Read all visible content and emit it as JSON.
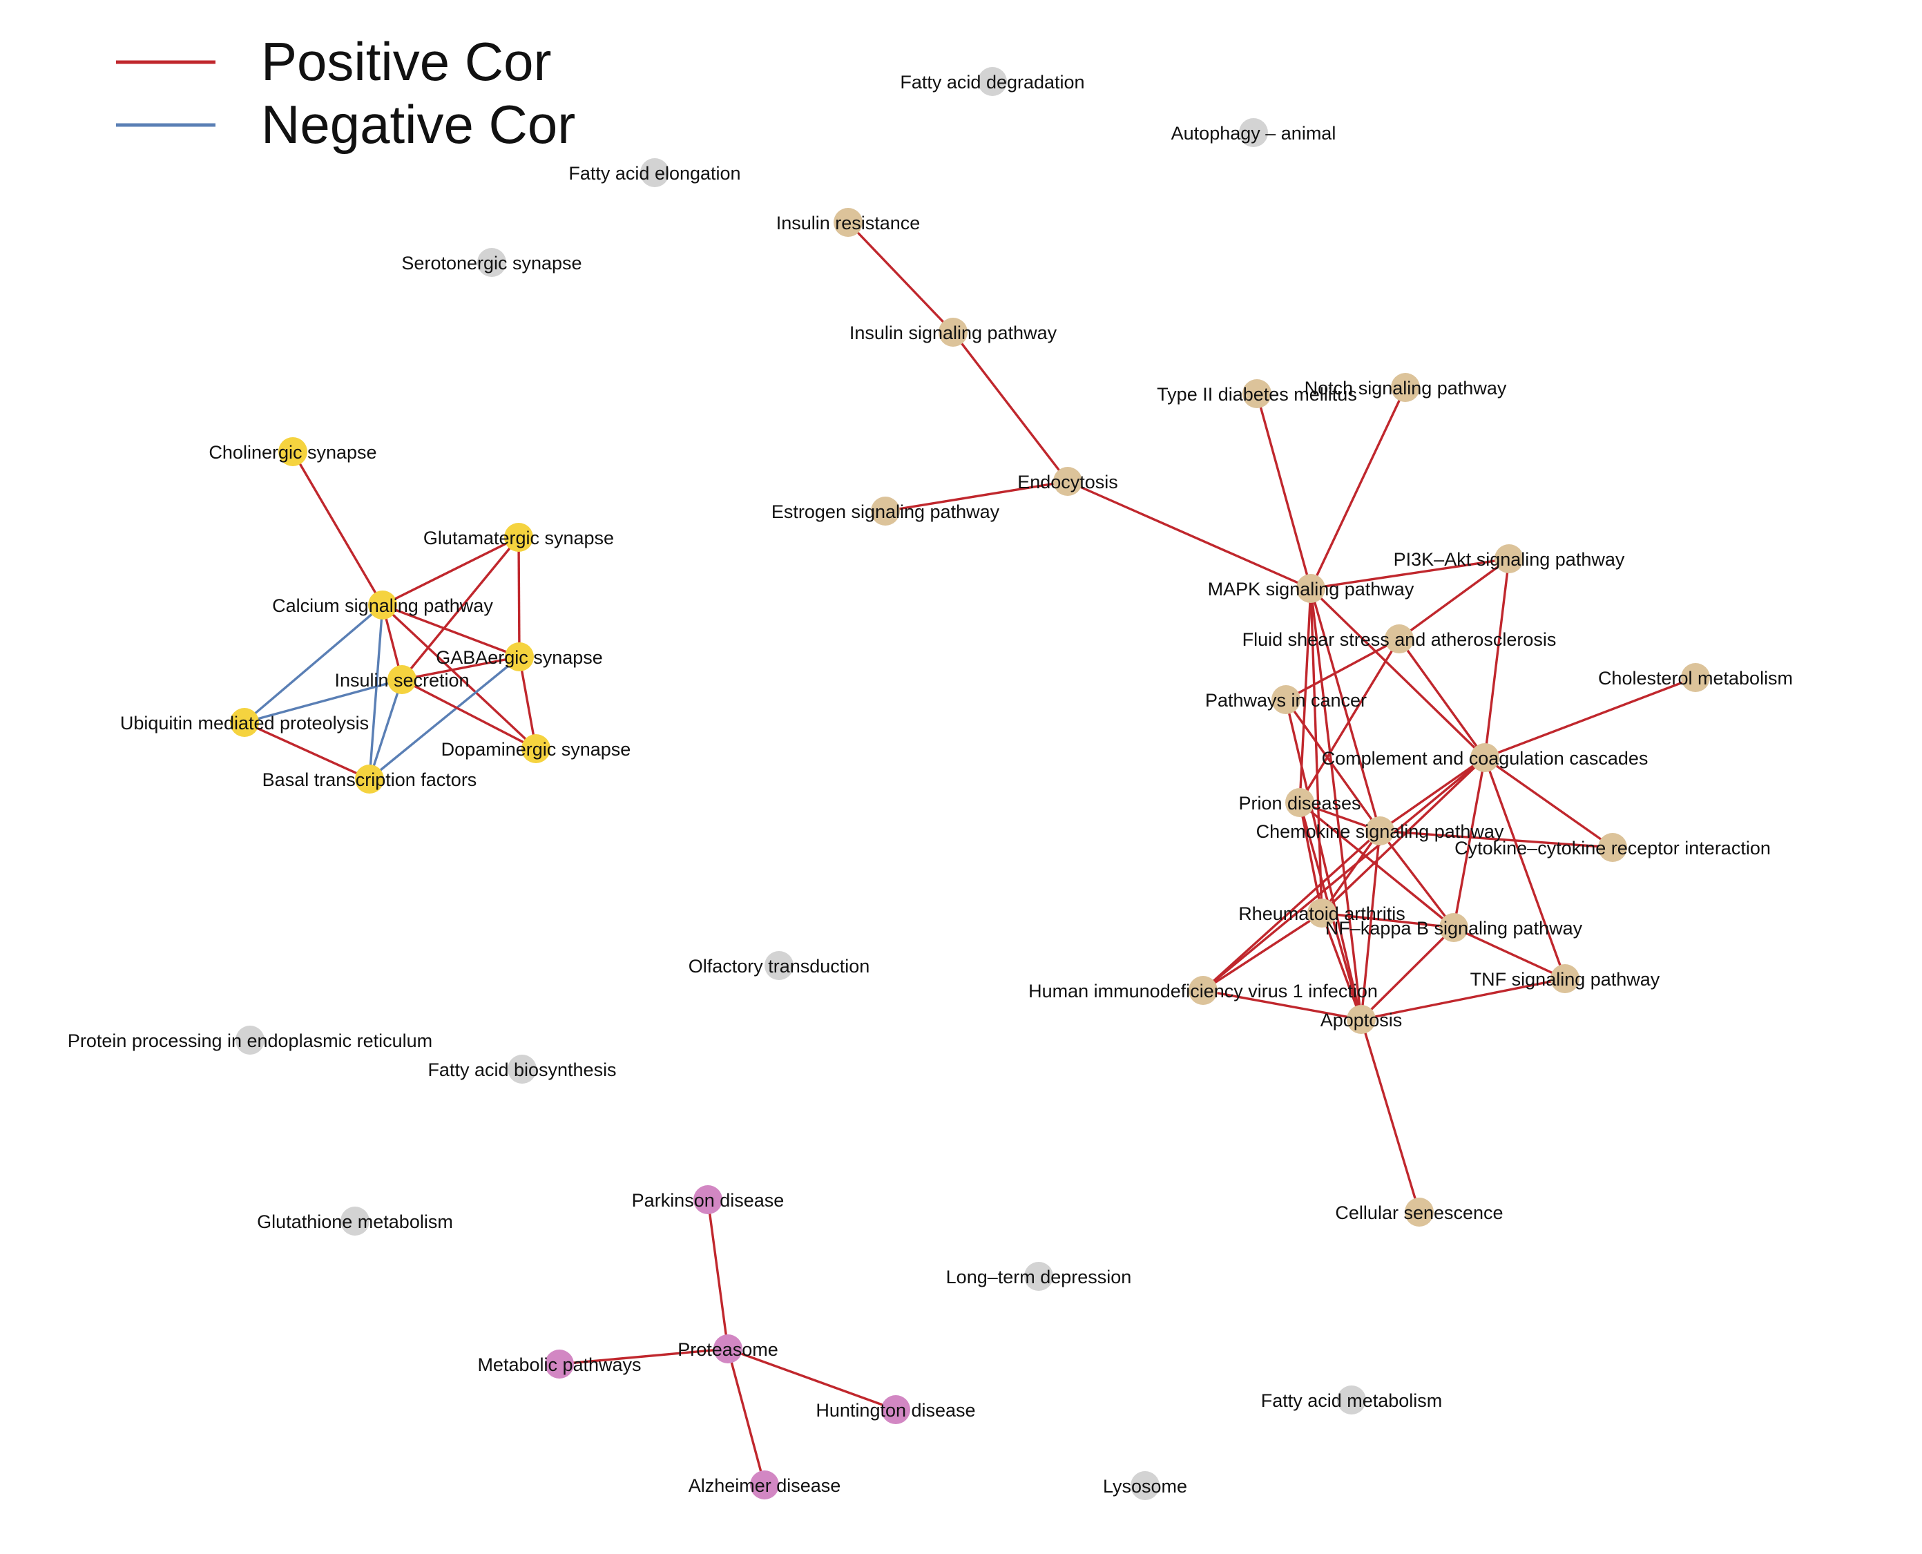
{
  "legend": {
    "items": [
      {
        "label": "Positive Cor",
        "color": "#c0272d"
      },
      {
        "label": "Negative Cor",
        "color": "#5a7fb5"
      }
    ]
  },
  "colors": {
    "positive": "#c0272d",
    "negative": "#5a7fb5",
    "groups": {
      "neuro": "#f5d33f",
      "signaling": "#dcc39a",
      "disease": "#d287c3",
      "isolated": "#d3d3d3"
    }
  },
  "nodes": [
    {
      "id": "fatty-acid-degradation",
      "label": "Fatty acid degradation",
      "group": "isolated"
    },
    {
      "id": "autophagy-animal",
      "label": "Autophagy – animal",
      "group": "isolated"
    },
    {
      "id": "fatty-acid-elongation",
      "label": "Fatty acid elongation",
      "group": "isolated"
    },
    {
      "id": "insulin-resistance",
      "label": "Insulin resistance",
      "group": "signaling"
    },
    {
      "id": "serotonergic-synapse",
      "label": "Serotonergic synapse",
      "group": "isolated"
    },
    {
      "id": "insulin-signaling-pathway",
      "label": "Insulin signaling pathway",
      "group": "signaling"
    },
    {
      "id": "type-ii-diabetes",
      "label": "Type II diabetes mellitus",
      "group": "signaling"
    },
    {
      "id": "notch-signaling",
      "label": "Notch signaling pathway",
      "group": "signaling"
    },
    {
      "id": "cholinergic-synapse",
      "label": "Cholinergic synapse",
      "group": "neuro"
    },
    {
      "id": "endocytosis",
      "label": "Endocytosis",
      "group": "signaling"
    },
    {
      "id": "estrogen-signaling",
      "label": "Estrogen signaling pathway",
      "group": "signaling"
    },
    {
      "id": "glutamatergic-synapse",
      "label": "Glutamatergic synapse",
      "group": "neuro"
    },
    {
      "id": "pi3k-akt",
      "label": "PI3K–Akt signaling pathway",
      "group": "signaling"
    },
    {
      "id": "mapk",
      "label": "MAPK signaling pathway",
      "group": "signaling"
    },
    {
      "id": "calcium-signaling",
      "label": "Calcium signaling pathway",
      "group": "neuro"
    },
    {
      "id": "fluid-shear",
      "label": "Fluid shear stress and atherosclerosis",
      "group": "signaling"
    },
    {
      "id": "gabaergic-synapse",
      "label": "GABAergic synapse",
      "group": "neuro"
    },
    {
      "id": "insulin-secretion",
      "label": "Insulin secretion",
      "group": "neuro"
    },
    {
      "id": "cholesterol-metabolism",
      "label": "Cholesterol metabolism",
      "group": "signaling"
    },
    {
      "id": "pathways-in-cancer",
      "label": "Pathways in cancer",
      "group": "signaling"
    },
    {
      "id": "ubiquitin",
      "label": "Ubiquitin mediated proteolysis",
      "group": "neuro"
    },
    {
      "id": "dopaminergic-synapse",
      "label": "Dopaminergic synapse",
      "group": "neuro"
    },
    {
      "id": "complement",
      "label": "Complement and coagulation cascades",
      "group": "signaling"
    },
    {
      "id": "basal-transcription",
      "label": "Basal transcription factors",
      "group": "neuro"
    },
    {
      "id": "prion-diseases",
      "label": "Prion diseases",
      "group": "signaling"
    },
    {
      "id": "chemokine",
      "label": "Chemokine signaling pathway",
      "group": "signaling"
    },
    {
      "id": "cytokine",
      "label": "Cytokine–cytokine receptor interaction",
      "group": "signaling"
    },
    {
      "id": "rheumatoid-arthritis",
      "label": "Rheumatoid arthritis",
      "group": "signaling"
    },
    {
      "id": "nf-kappa-b",
      "label": "NF–kappa B signaling pathway",
      "group": "signaling"
    },
    {
      "id": "olfactory-transduction",
      "label": "Olfactory transduction",
      "group": "isolated"
    },
    {
      "id": "tnf-signaling",
      "label": "TNF signaling pathway",
      "group": "signaling"
    },
    {
      "id": "hiv-infection",
      "label": "Human immunodeficiency virus 1 infection",
      "group": "signaling"
    },
    {
      "id": "apoptosis",
      "label": "Apoptosis",
      "group": "signaling"
    },
    {
      "id": "protein-processing-er",
      "label": "Protein processing in endoplasmic reticulum",
      "group": "isolated"
    },
    {
      "id": "fatty-acid-biosynthesis",
      "label": "Fatty acid biosynthesis",
      "group": "isolated"
    },
    {
      "id": "parkinson-disease",
      "label": "Parkinson disease",
      "group": "disease"
    },
    {
      "id": "cellular-senescence",
      "label": "Cellular senescence",
      "group": "signaling"
    },
    {
      "id": "glutathione-metabolism",
      "label": "Glutathione metabolism",
      "group": "isolated"
    },
    {
      "id": "long-term-depression",
      "label": "Long–term depression",
      "group": "isolated"
    },
    {
      "id": "proteasome",
      "label": "Proteasome",
      "group": "disease"
    },
    {
      "id": "metabolic-pathways",
      "label": "Metabolic pathways",
      "group": "disease"
    },
    {
      "id": "huntington-disease",
      "label": "Huntington disease",
      "group": "disease"
    },
    {
      "id": "fatty-acid-metabolism",
      "label": "Fatty acid metabolism",
      "group": "isolated"
    },
    {
      "id": "alzheimer-disease",
      "label": "Alzheimer disease",
      "group": "disease"
    },
    {
      "id": "lysosome",
      "label": "Lysosome",
      "group": "isolated"
    }
  ],
  "edges": [
    {
      "source": "insulin-resistance",
      "target": "insulin-signaling-pathway",
      "sign": "positive"
    },
    {
      "source": "insulin-signaling-pathway",
      "target": "endocytosis",
      "sign": "positive"
    },
    {
      "source": "estrogen-signaling",
      "target": "endocytosis",
      "sign": "positive"
    },
    {
      "source": "endocytosis",
      "target": "mapk",
      "sign": "positive"
    },
    {
      "source": "type-ii-diabetes",
      "target": "mapk",
      "sign": "positive"
    },
    {
      "source": "notch-signaling",
      "target": "mapk",
      "sign": "positive"
    },
    {
      "source": "mapk",
      "target": "pi3k-akt",
      "sign": "positive"
    },
    {
      "source": "mapk",
      "target": "complement",
      "sign": "positive"
    },
    {
      "source": "mapk",
      "target": "prion-diseases",
      "sign": "positive"
    },
    {
      "source": "mapk",
      "target": "chemokine",
      "sign": "positive"
    },
    {
      "source": "mapk",
      "target": "rheumatoid-arthritis",
      "sign": "positive"
    },
    {
      "source": "mapk",
      "target": "apoptosis",
      "sign": "positive"
    },
    {
      "source": "pi3k-akt",
      "target": "fluid-shear",
      "sign": "positive"
    },
    {
      "source": "pi3k-akt",
      "target": "complement",
      "sign": "positive"
    },
    {
      "source": "fluid-shear",
      "target": "pathways-in-cancer",
      "sign": "positive"
    },
    {
      "source": "fluid-shear",
      "target": "complement",
      "sign": "positive"
    },
    {
      "source": "fluid-shear",
      "target": "prion-diseases",
      "sign": "positive"
    },
    {
      "source": "pathways-in-cancer",
      "target": "chemokine",
      "sign": "positive"
    },
    {
      "source": "pathways-in-cancer",
      "target": "apoptosis",
      "sign": "positive"
    },
    {
      "source": "cholesterol-metabolism",
      "target": "complement",
      "sign": "positive"
    },
    {
      "source": "complement",
      "target": "chemokine",
      "sign": "positive"
    },
    {
      "source": "complement",
      "target": "rheumatoid-arthritis",
      "sign": "positive"
    },
    {
      "source": "complement",
      "target": "cytokine",
      "sign": "positive"
    },
    {
      "source": "complement",
      "target": "tnf-signaling",
      "sign": "positive"
    },
    {
      "source": "complement",
      "target": "nf-kappa-b",
      "sign": "positive"
    },
    {
      "source": "complement",
      "target": "hiv-infection",
      "sign": "positive"
    },
    {
      "source": "prion-diseases",
      "target": "chemokine",
      "sign": "positive"
    },
    {
      "source": "prion-diseases",
      "target": "nf-kappa-b",
      "sign": "positive"
    },
    {
      "source": "prion-diseases",
      "target": "apoptosis",
      "sign": "positive"
    },
    {
      "source": "prion-diseases",
      "target": "rheumatoid-arthritis",
      "sign": "positive"
    },
    {
      "source": "chemokine",
      "target": "cytokine",
      "sign": "positive"
    },
    {
      "source": "chemokine",
      "target": "nf-kappa-b",
      "sign": "positive"
    },
    {
      "source": "chemokine",
      "target": "hiv-infection",
      "sign": "positive"
    },
    {
      "source": "chemokine",
      "target": "apoptosis",
      "sign": "positive"
    },
    {
      "source": "chemokine",
      "target": "rheumatoid-arthritis",
      "sign": "positive"
    },
    {
      "source": "rheumatoid-arthritis",
      "target": "nf-kappa-b",
      "sign": "positive"
    },
    {
      "source": "rheumatoid-arthritis",
      "target": "hiv-infection",
      "sign": "positive"
    },
    {
      "source": "rheumatoid-arthritis",
      "target": "apoptosis",
      "sign": "positive"
    },
    {
      "source": "nf-kappa-b",
      "target": "tnf-signaling",
      "sign": "positive"
    },
    {
      "source": "nf-kappa-b",
      "target": "apoptosis",
      "sign": "positive"
    },
    {
      "source": "hiv-infection",
      "target": "apoptosis",
      "sign": "positive"
    },
    {
      "source": "apoptosis",
      "target": "tnf-signaling",
      "sign": "positive"
    },
    {
      "source": "apoptosis",
      "target": "cellular-senescence",
      "sign": "positive"
    },
    {
      "source": "cholinergic-synapse",
      "target": "calcium-signaling",
      "sign": "positive"
    },
    {
      "source": "calcium-signaling",
      "target": "glutamatergic-synapse",
      "sign": "positive"
    },
    {
      "source": "calcium-signaling",
      "target": "gabaergic-synapse",
      "sign": "positive"
    },
    {
      "source": "calcium-signaling",
      "target": "insulin-secretion",
      "sign": "positive"
    },
    {
      "source": "calcium-signaling",
      "target": "dopaminergic-synapse",
      "sign": "positive"
    },
    {
      "source": "calcium-signaling",
      "target": "ubiquitin",
      "sign": "negative"
    },
    {
      "source": "calcium-signaling",
      "target": "basal-transcription",
      "sign": "negative"
    },
    {
      "source": "glutamatergic-synapse",
      "target": "gabaergic-synapse",
      "sign": "positive"
    },
    {
      "source": "glutamatergic-synapse",
      "target": "insulin-secretion",
      "sign": "positive"
    },
    {
      "source": "gabaergic-synapse",
      "target": "insulin-secretion",
      "sign": "positive"
    },
    {
      "source": "gabaergic-synapse",
      "target": "dopaminergic-synapse",
      "sign": "positive"
    },
    {
      "source": "gabaergic-synapse",
      "target": "basal-transcription",
      "sign": "negative"
    },
    {
      "source": "insulin-secretion",
      "target": "dopaminergic-synapse",
      "sign": "positive"
    },
    {
      "source": "insulin-secretion",
      "target": "ubiquitin",
      "sign": "negative"
    },
    {
      "source": "insulin-secretion",
      "target": "basal-transcription",
      "sign": "negative"
    },
    {
      "source": "ubiquitin",
      "target": "basal-transcription",
      "sign": "positive"
    },
    {
      "source": "parkinson-disease",
      "target": "proteasome",
      "sign": "positive"
    },
    {
      "source": "proteasome",
      "target": "metabolic-pathways",
      "sign": "positive"
    },
    {
      "source": "proteasome",
      "target": "huntington-disease",
      "sign": "positive"
    },
    {
      "source": "proteasome",
      "target": "alzheimer-disease",
      "sign": "positive"
    }
  ]
}
